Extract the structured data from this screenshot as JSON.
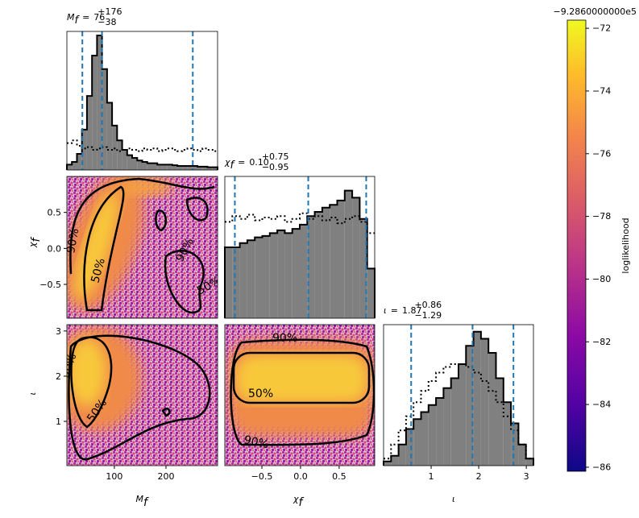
{
  "chart_data": [
    {
      "type": "histogram",
      "title": {
        "symbol": "M",
        "sub": "f",
        "relation": "=",
        "median": "76",
        "upper": "+176",
        "lower": "−38"
      },
      "bins": [
        8,
        17.7,
        27.5,
        37.2,
        46.9,
        56.7,
        66.4,
        76.1,
        85.9,
        95.6,
        105.3,
        115.1,
        124.8,
        134.5,
        144.3,
        154,
        163.7,
        173.5,
        183.2,
        192.9,
        202.7,
        212.4,
        222.1,
        231.9,
        241.6,
        251.3,
        261.1,
        270.8,
        280.5,
        290.3,
        300
      ],
      "values": [
        0.04,
        0.06,
        0.12,
        0.3,
        0.55,
        0.85,
        1.0,
        0.75,
        0.5,
        0.33,
        0.22,
        0.15,
        0.11,
        0.09,
        0.07,
        0.06,
        0.05,
        0.05,
        0.04,
        0.04,
        0.04,
        0.035,
        0.03,
        0.03,
        0.03,
        0.03,
        0.025,
        0.025,
        0.02,
        0.02
      ],
      "prior_values": [
        0.2,
        0.22,
        0.18,
        0.16,
        0.17,
        0.15,
        0.16,
        0.17,
        0.15,
        0.16,
        0.14,
        0.15,
        0.16,
        0.15,
        0.14,
        0.16,
        0.15,
        0.16,
        0.14,
        0.15,
        0.16,
        0.15,
        0.14,
        0.15,
        0.16,
        0.15,
        0.14,
        0.16,
        0.15,
        0.14
      ],
      "color": "#808080",
      "quantiles": [
        38,
        76,
        252
      ],
      "quantile_color": "#1f77b4",
      "xlim": [
        8,
        300
      ],
      "ylim": [
        0,
        1.03
      ]
    },
    {
      "type": "scatter-density",
      "contour_labels": [
        "50%",
        "90%"
      ],
      "xlim": [
        8,
        300
      ],
      "ylim": [
        -0.97,
        1.0
      ],
      "yticks": [
        {
          "value": -0.5,
          "label": "−0.5"
        },
        {
          "value": 0,
          "label": "0.0"
        },
        0.5
      ],
      "ylabel": {
        "symbol": "χ",
        "sub": "f"
      }
    },
    {
      "type": "histogram",
      "title": {
        "symbol": "χ",
        "sub": "f",
        "relation": "=",
        "median": "0.10",
        "upper": "+0.75",
        "lower": "−0.95"
      },
      "bins": [
        -0.98,
        -0.883,
        -0.786,
        -0.689,
        -0.592,
        -0.495,
        -0.398,
        -0.301,
        -0.204,
        -0.107,
        -0.01,
        0.087,
        0.184,
        0.281,
        0.378,
        0.475,
        0.572,
        0.669,
        0.766,
        0.863,
        0.96
      ],
      "values": [
        0.5,
        0.5,
        0.53,
        0.55,
        0.57,
        0.58,
        0.6,
        0.62,
        0.6,
        0.63,
        0.66,
        0.72,
        0.75,
        0.78,
        0.8,
        0.83,
        0.9,
        0.85,
        0.7,
        0.35
      ],
      "prior_values": [
        0.68,
        0.72,
        0.7,
        0.73,
        0.69,
        0.71,
        0.7,
        0.72,
        0.68,
        0.7,
        0.74,
        0.7,
        0.72,
        0.69,
        0.71,
        0.67,
        0.7,
        0.72,
        0.68,
        0.6
      ],
      "color": "#808080",
      "quantiles": [
        -0.85,
        0.1,
        0.85
      ],
      "quantile_color": "#1f77b4",
      "xlim": [
        -0.98,
        0.96
      ],
      "ylim": [
        0,
        1.0
      ]
    },
    {
      "type": "scatter-density",
      "contour_labels": [
        "50%",
        "90%"
      ],
      "xlim": [
        8,
        300
      ],
      "ylim": [
        0.02,
        3.14
      ],
      "xticks": [
        100,
        200
      ],
      "yticks": [
        1,
        2,
        3
      ],
      "xlabel": {
        "symbol": "M",
        "sub": "f"
      },
      "ylabel": {
        "symbol": "ι"
      }
    },
    {
      "type": "scatter-density",
      "contour_labels": [
        "50%",
        "90%"
      ],
      "xlim": [
        -0.98,
        0.96
      ],
      "ylim": [
        0.02,
        3.14
      ],
      "xticks": [
        {
          "value": -0.5,
          "label": "−0.5"
        },
        {
          "value": 0,
          "label": "0.0"
        },
        0.5
      ],
      "xlabel": {
        "symbol": "χ",
        "sub": "f"
      }
    },
    {
      "type": "histogram",
      "title": {
        "symbol": "ι",
        "relation": "=",
        "median": "1.87",
        "upper": "+0.86",
        "lower": "−1.29"
      },
      "bins": [
        0,
        0.1575,
        0.315,
        0.4725,
        0.63,
        0.7875,
        0.945,
        1.1025,
        1.26,
        1.4175,
        1.575,
        1.7325,
        1.89,
        2.0475,
        2.205,
        2.3625,
        2.52,
        2.6775,
        2.835,
        2.9925,
        3.15
      ],
      "values": [
        0.03,
        0.07,
        0.15,
        0.26,
        0.33,
        0.38,
        0.43,
        0.48,
        0.55,
        0.62,
        0.72,
        0.85,
        0.95,
        0.9,
        0.8,
        0.62,
        0.45,
        0.3,
        0.15,
        0.05
      ],
      "prior_values": [
        0.05,
        0.15,
        0.25,
        0.35,
        0.45,
        0.53,
        0.6,
        0.66,
        0.7,
        0.72,
        0.72,
        0.7,
        0.66,
        0.6,
        0.53,
        0.45,
        0.35,
        0.25,
        0.15,
        0.05
      ],
      "color": "#808080",
      "quantiles": [
        0.58,
        1.87,
        2.73
      ],
      "quantile_color": "#1f77b4",
      "xlim": [
        0,
        3.15
      ],
      "ylim": [
        0,
        1.0
      ],
      "xticks": [
        1,
        2,
        3
      ],
      "xlabel": {
        "symbol": "ι"
      }
    },
    {
      "type": "colorbar",
      "colormap": "plasma",
      "label": "loglikelihood",
      "offset": "−9.2860000000e5",
      "ylim": [
        -86.13,
        -71.74
      ],
      "yticks": [
        {
          "value": -72,
          "label": "−72"
        },
        {
          "value": -74,
          "label": "−74"
        },
        {
          "value": -76,
          "label": "−76"
        },
        {
          "value": -78,
          "label": "−78"
        },
        {
          "value": -80,
          "label": "−80"
        },
        {
          "value": -82,
          "label": "−82"
        },
        {
          "value": -84,
          "label": "−84"
        },
        {
          "value": -86,
          "label": "−86"
        }
      ]
    }
  ]
}
